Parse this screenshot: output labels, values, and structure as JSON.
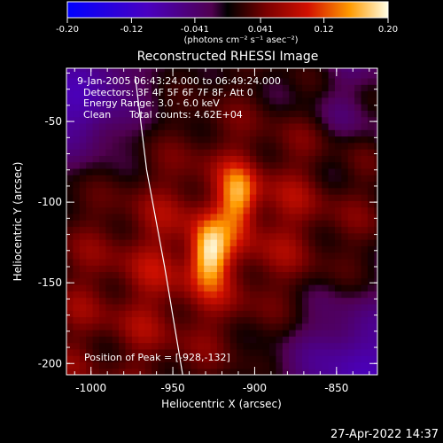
{
  "colorbar": {
    "ticks": [
      "-0.20",
      "-0.12",
      "-0.041",
      "0.041",
      "0.12",
      "0.20"
    ],
    "tick_values": [
      -0.2,
      -0.12,
      -0.041,
      0.041,
      0.12,
      0.2
    ],
    "range": [
      -0.2,
      0.2
    ],
    "unit_label": "(photons cm⁻² s⁻¹ asec⁻²)"
  },
  "chart_data": {
    "type": "heatmap",
    "title": "Reconstructed RHESSI Image",
    "xlabel": "Heliocentric X (arcsec)",
    "ylabel": "Heliocentric Y (arcsec)",
    "xlim": [
      -1015,
      -825
    ],
    "ylim": [
      -207,
      -17
    ],
    "x_ticks": [
      "-1000",
      "-950",
      "-900",
      "-850"
    ],
    "x_tick_values": [
      -1000,
      -950,
      -900,
      -850
    ],
    "y_ticks": [
      "-50",
      "-100",
      "-150",
      "-200"
    ],
    "y_tick_values": [
      -50,
      -100,
      -150,
      -200
    ],
    "annotations": {
      "time_range": "9-Jan-2005 06:43:24.000 to 06:49:24.000",
      "detectors": "Detectors: 3F 4F 5F 6F 7F 8F, Att 0",
      "energy": "Energy Range: 3.0 - 6.0 keV",
      "method": "Clean",
      "counts": "Total counts: 4.62E+04",
      "peak": "Position of Peak = [-928,-132]"
    },
    "peaks": [
      {
        "x": -928,
        "y": -132,
        "value": 0.2
      },
      {
        "x": -910,
        "y": -97,
        "value": 0.17
      }
    ],
    "limb_curve": [
      [
        -973,
        -22
      ],
      [
        -966,
        -80
      ],
      [
        -955,
        -140
      ],
      [
        -944,
        -207
      ]
    ]
  },
  "footer": {
    "timestamp": "27-Apr-2022 14:37"
  }
}
